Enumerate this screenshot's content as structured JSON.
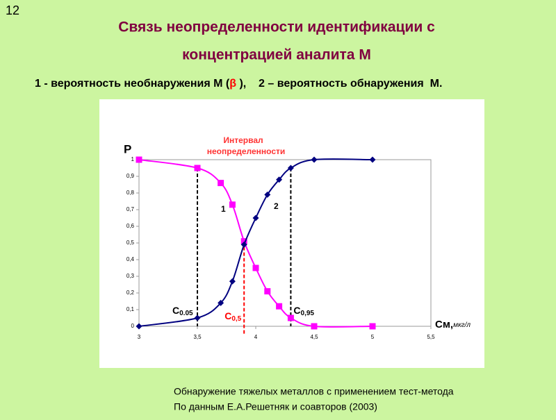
{
  "page_number": "12",
  "title_lines": [
    "Связь неопределенности идентификации с",
    "концентрацией аналита  М"
  ],
  "subtitle_parts": [
    "1 - вероятность необнаружения М (",
    "β",
    " ),    2 – вероятность обнаружения  М."
  ],
  "footer_lines": [
    "Обнаружение  тяжелых металлов с применением  тест-метода",
    "По данным Е.А.Решетняк и соавторов (2003)"
  ],
  "chart_data": {
    "type": "line",
    "y_label": "P",
    "x_label": "Cм,",
    "x_unit": "мкг/л",
    "interval_label": [
      "Интервал",
      "неопределенности"
    ],
    "xlim": [
      3,
      5.5
    ],
    "xticks": [
      3,
      {
        "value": 3.5,
        "label": "3,5"
      },
      4,
      {
        "value": 4.5,
        "label": "4,5"
      },
      5,
      {
        "value": 5.5,
        "label": "5,5"
      }
    ],
    "ylim": [
      0,
      1
    ],
    "yticks": [
      0,
      {
        "value": 0.1,
        "label": "0,1"
      },
      {
        "value": 0.2,
        "label": "0,2"
      },
      {
        "value": 0.3,
        "label": "0,3"
      },
      {
        "value": 0.4,
        "label": "0,4"
      },
      {
        "value": 0.5,
        "label": "0,5"
      },
      {
        "value": 0.6,
        "label": "0,6"
      },
      {
        "value": 0.7,
        "label": "0,7"
      },
      {
        "value": 0.8,
        "label": "0,8"
      },
      {
        "value": 0.9,
        "label": "0,9"
      },
      1
    ],
    "grid": false,
    "series": [
      {
        "name": "1",
        "color": "#ff00ff",
        "marker": "square",
        "x": [
          3,
          3.5,
          3.7,
          3.8,
          3.9,
          4.0,
          4.1,
          4.2,
          4.3,
          4.5,
          5
        ],
        "values": [
          1,
          0.95,
          0.86,
          0.73,
          0.51,
          0.35,
          0.21,
          0.12,
          0.05,
          0,
          0
        ]
      },
      {
        "name": "2",
        "color": "#000080",
        "marker": "diamond",
        "x": [
          3,
          3.5,
          3.7,
          3.8,
          3.9,
          4.0,
          4.1,
          4.2,
          4.3,
          4.5,
          5
        ],
        "values": [
          0,
          0.05,
          0.14,
          0.27,
          0.49,
          0.65,
          0.79,
          0.88,
          0.95,
          1,
          1
        ]
      }
    ],
    "ref_lines": [
      {
        "x": 3.5,
        "y": 0.95,
        "color": "#000000",
        "label": "C",
        "sub": "0.05"
      },
      {
        "x": 3.9,
        "y": 0.51,
        "color": "#ff0000",
        "label": "C",
        "sub": "0,5"
      },
      {
        "x": 4.3,
        "y": 0.95,
        "color": "#000000",
        "label": "C",
        "sub": "0,95"
      }
    ]
  }
}
